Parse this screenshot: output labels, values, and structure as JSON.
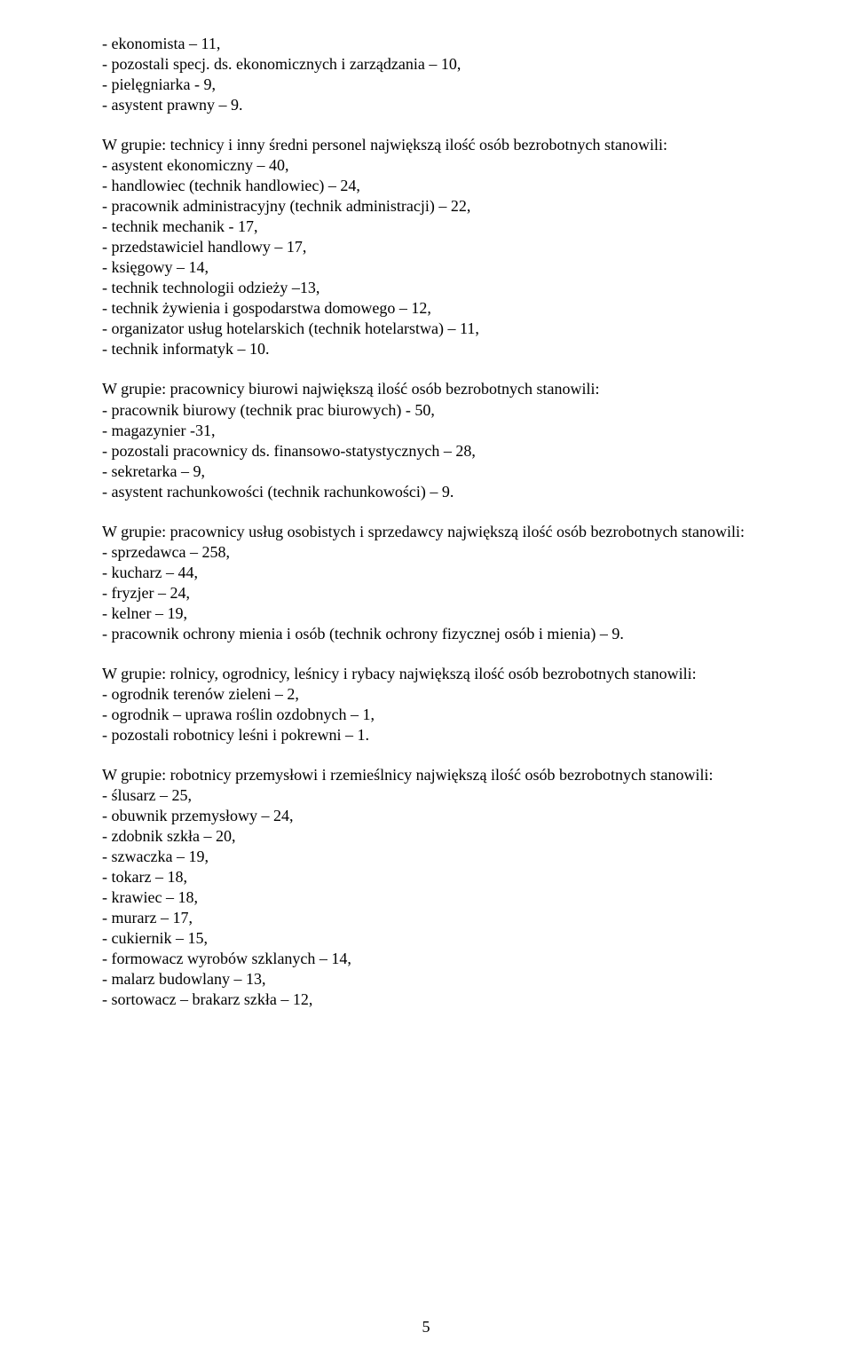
{
  "g1": {
    "i1": "- ekonomista – 11,",
    "i2": "- pozostali specj. ds. ekonomicznych i zarządzania – 10,",
    "i3": "- pielęgniarka - 9,",
    "i4": "- asystent prawny – 9."
  },
  "g2": {
    "intro": "W grupie: technicy i inny średni personel największą ilość osób bezrobotnych stanowili:",
    "i1": "- asystent ekonomiczny – 40,",
    "i2": "- handlowiec (technik handlowiec) – 24,",
    "i3": "- pracownik administracyjny (technik administracji) – 22,",
    "i4": "- technik mechanik - 17,",
    "i5": "- przedstawiciel handlowy – 17,",
    "i6": "- księgowy – 14,",
    "i7": "- technik technologii odzieży –13,",
    "i8": "- technik żywienia i gospodarstwa domowego – 12,",
    "i9": "- organizator usług hotelarskich (technik hotelarstwa) – 11,",
    "i10": "- technik informatyk – 10."
  },
  "g3": {
    "intro": "W grupie: pracownicy biurowi największą ilość osób bezrobotnych stanowili:",
    "i1": "- pracownik biurowy (technik prac biurowych) - 50,",
    "i2": "- magazynier -31,",
    "i3": "- pozostali pracownicy ds. finansowo-statystycznych – 28,",
    "i4": "- sekretarka – 9,",
    "i5": "- asystent rachunkowości (technik rachunkowości) – 9."
  },
  "g4": {
    "intro": "W grupie: pracownicy usług osobistych i sprzedawcy największą ilość osób bezrobotnych stanowili:",
    "i1": "- sprzedawca – 258,",
    "i2": "- kucharz – 44,",
    "i3": "- fryzjer – 24,",
    "i4": "- kelner – 19,",
    "i5": "- pracownik ochrony mienia i osób (technik ochrony fizycznej osób i mienia) – 9."
  },
  "g5": {
    "intro": "W grupie: rolnicy, ogrodnicy, leśnicy i rybacy największą ilość osób bezrobotnych stanowili:",
    "i1": "- ogrodnik terenów zieleni – 2,",
    "i2": "- ogrodnik – uprawa roślin ozdobnych – 1,",
    "i3": "- pozostali robotnicy leśni i pokrewni – 1."
  },
  "g6": {
    "intro": "W grupie: robotnicy przemysłowi i rzemieślnicy największą ilość osób bezrobotnych stanowili:",
    "i1": "- ślusarz – 25,",
    "i2": "- obuwnik przemysłowy – 24,",
    "i3": "- zdobnik szkła – 20,",
    "i4": "- szwaczka – 19,",
    "i5": "- tokarz – 18,",
    "i6": "- krawiec – 18,",
    "i7": "- murarz – 17,",
    "i8": "- cukiernik – 15,",
    "i9": "- formowacz wyrobów szklanych – 14,",
    "i10": "- malarz budowlany – 13,",
    "i11": "- sortowacz – brakarz szkła – 12,"
  },
  "pagenum": "5"
}
